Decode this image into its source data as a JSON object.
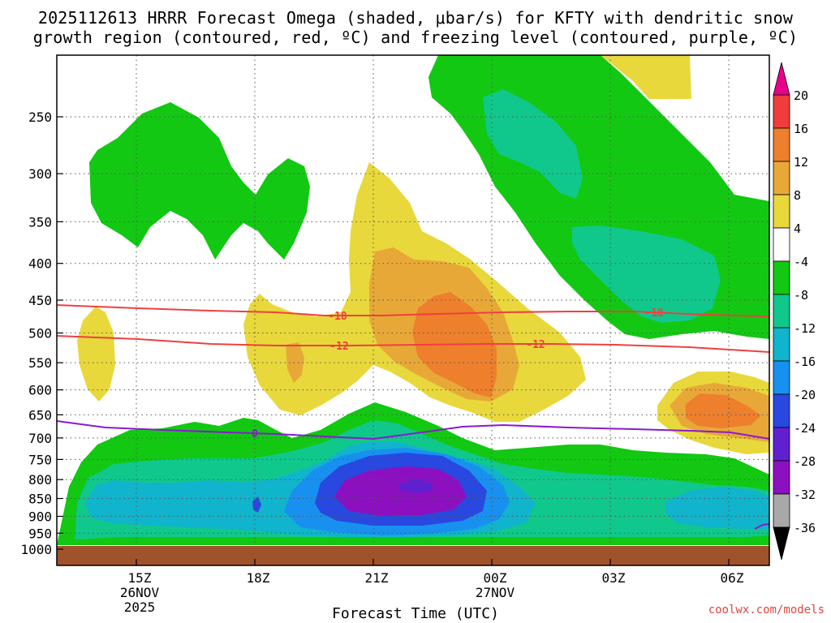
{
  "header": {
    "title_line1": "2025112613 HRRR Forecast Omega (shaded, μbar/s) for KFTY with dendritic snow",
    "title_line2": "growth region (contoured, red, ºC) and freezing level (contoured, purple, ºC)"
  },
  "footer": {
    "credit": "coolwx.com/models"
  },
  "chart_data": {
    "type": "heatmap",
    "title": "2025112613 HRRR Forecast Omega (shaded, μbar/s) for KFTY with dendritic snow growth region (contoured, red, ºC) and freezing level (contoured, purple, ºC)",
    "xlabel": "Forecast Time (UTC)",
    "ylabel": "",
    "x_ticks": [
      {
        "label": "15Z",
        "sub1": "26NOV",
        "sub2": "2025"
      },
      {
        "label": "18Z",
        "sub1": "",
        "sub2": ""
      },
      {
        "label": "21Z",
        "sub1": "",
        "sub2": ""
      },
      {
        "label": "00Z",
        "sub1": "27NOV",
        "sub2": ""
      },
      {
        "label": "03Z",
        "sub1": "",
        "sub2": ""
      },
      {
        "label": "06Z",
        "sub1": "",
        "sub2": ""
      }
    ],
    "y_ticks": [
      "250",
      "300",
      "350",
      "400",
      "450",
      "500",
      "550",
      "600",
      "650",
      "700",
      "750",
      "800",
      "850",
      "900",
      "950",
      "1000"
    ],
    "colorbar": {
      "labels": [
        "20",
        "16",
        "12",
        "8",
        "4",
        "-4",
        "-8",
        "-12",
        "-16",
        "-20",
        "-24",
        "-28",
        "-32",
        "-36"
      ],
      "colors": [
        "#e8008a",
        "#f03c3c",
        "#ee7f2c",
        "#e8a838",
        "#e8d83c",
        "#ffffff",
        "#12c812",
        "#10c88c",
        "#10b4cc",
        "#1890f0",
        "#2848e0",
        "#6020d0",
        "#8c10c0",
        "#a8a8a8",
        "#000000"
      ]
    },
    "contours": [
      {
        "name": "dendritic growth -18",
        "color": "#ee4040",
        "label": "-18"
      },
      {
        "name": "dendritic growth -12",
        "color": "#ee4040",
        "label": "-12"
      },
      {
        "name": "freezing level 0",
        "color": "#8a1ad0",
        "label": "0"
      }
    ],
    "omega_summary": {
      "max_ascent_value": "-32",
      "max_ascent_time": "22Z-23Z",
      "max_ascent_pressure": "850",
      "max_descent_value": "12",
      "max_descent_pressure": "520"
    }
  }
}
